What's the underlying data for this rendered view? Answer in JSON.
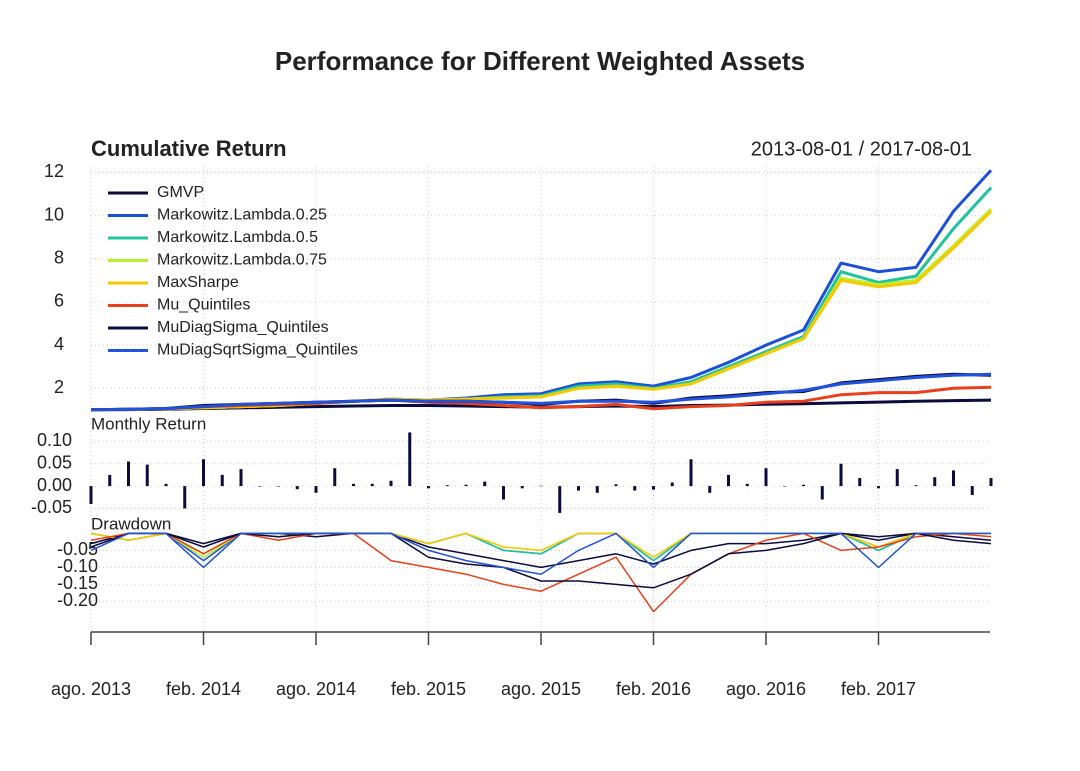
{
  "chart_data": [
    {
      "type": "line",
      "title": "Performance for Different Weighted Assets",
      "subtitle": "Cumulative Return",
      "annotation": "2013-08-01 / 2017-08-01",
      "legend": "top-left",
      "x": [
        "2013-08",
        "2013-10",
        "2013-12",
        "2014-02",
        "2014-04",
        "2014-06",
        "2014-08",
        "2014-10",
        "2014-12",
        "2015-02",
        "2015-04",
        "2015-06",
        "2015-08",
        "2015-10",
        "2015-12",
        "2016-02",
        "2016-04",
        "2016-06",
        "2016-08",
        "2016-10",
        "2016-12",
        "2017-02",
        "2017-04",
        "2017-06",
        "2017-08"
      ],
      "ylim": [
        0.9,
        12.3
      ],
      "yticks": [
        2,
        4,
        6,
        8,
        10,
        12
      ],
      "grid": true,
      "series": [
        {
          "name": "GMVP",
          "color": "#0b0b3d",
          "values": [
            1,
            1.01,
            1.03,
            1.06,
            1.09,
            1.12,
            1.15,
            1.18,
            1.2,
            1.2,
            1.18,
            1.15,
            1.12,
            1.15,
            1.18,
            1.15,
            1.2,
            1.22,
            1.26,
            1.28,
            1.32,
            1.36,
            1.4,
            1.43,
            1.45
          ]
        },
        {
          "name": "Markowitz.Lambda.0.25",
          "color": "#1c4fd8",
          "values": [
            1,
            1.02,
            1.05,
            1.1,
            1.15,
            1.2,
            1.3,
            1.4,
            1.5,
            1.45,
            1.55,
            1.7,
            1.75,
            2.2,
            2.3,
            2.1,
            2.5,
            3.2,
            4.0,
            4.7,
            7.8,
            7.4,
            7.6,
            10.2,
            12.1
          ]
        },
        {
          "name": "Markowitz.Lambda.0.5",
          "color": "#1fc49a",
          "values": [
            1,
            1.02,
            1.05,
            1.1,
            1.15,
            1.2,
            1.3,
            1.4,
            1.5,
            1.45,
            1.5,
            1.6,
            1.65,
            2.1,
            2.2,
            2.0,
            2.3,
            3.0,
            3.7,
            4.4,
            7.4,
            6.9,
            7.2,
            9.4,
            11.3
          ]
        },
        {
          "name": "Markowitz.Lambda.0.75",
          "color": "#bdf02c",
          "values": [
            1,
            1.02,
            1.05,
            1.1,
            1.15,
            1.2,
            1.3,
            1.4,
            1.5,
            1.45,
            1.5,
            1.55,
            1.6,
            2.0,
            2.1,
            1.95,
            2.2,
            2.9,
            3.6,
            4.3,
            7.1,
            6.8,
            7.0,
            8.6,
            10.3
          ]
        },
        {
          "name": "MaxSharpe",
          "color": "#f5c800",
          "values": [
            1,
            1.02,
            1.05,
            1.1,
            1.15,
            1.2,
            1.3,
            1.4,
            1.5,
            1.45,
            1.5,
            1.55,
            1.6,
            2.0,
            2.1,
            1.95,
            2.2,
            2.9,
            3.6,
            4.3,
            7.0,
            6.7,
            6.9,
            8.5,
            10.2
          ]
        },
        {
          "name": "Mu_Quintiles",
          "color": "#e8401c",
          "values": [
            1,
            1.02,
            1.05,
            1.15,
            1.2,
            1.25,
            1.3,
            1.4,
            1.45,
            1.35,
            1.3,
            1.2,
            1.1,
            1.15,
            1.25,
            1.05,
            1.15,
            1.2,
            1.35,
            1.4,
            1.7,
            1.8,
            1.8,
            2.0,
            2.05
          ]
        },
        {
          "name": "MuDiagSigma_Quintiles",
          "color": "#0b0b3d",
          "values": [
            1,
            1.03,
            1.06,
            1.2,
            1.25,
            1.3,
            1.35,
            1.4,
            1.45,
            1.4,
            1.4,
            1.35,
            1.25,
            1.4,
            1.45,
            1.3,
            1.55,
            1.65,
            1.8,
            1.85,
            2.25,
            2.4,
            2.55,
            2.65,
            2.6
          ]
        },
        {
          "name": "MuDiagSqrtSigma_Quintiles",
          "color": "#2152da",
          "values": [
            1,
            1.03,
            1.06,
            1.15,
            1.25,
            1.3,
            1.35,
            1.4,
            1.45,
            1.4,
            1.4,
            1.35,
            1.3,
            1.4,
            1.4,
            1.35,
            1.5,
            1.6,
            1.75,
            1.9,
            2.2,
            2.35,
            2.5,
            2.6,
            2.65
          ]
        }
      ]
    },
    {
      "type": "bar",
      "title": "Monthly Return",
      "color": "#0b0b3d",
      "x": [
        "2013-08",
        "2013-09",
        "2013-10",
        "2013-11",
        "2013-12",
        "2014-01",
        "2014-02",
        "2014-03",
        "2014-04",
        "2014-05",
        "2014-06",
        "2014-07",
        "2014-08",
        "2014-09",
        "2014-10",
        "2014-11",
        "2014-12",
        "2015-01",
        "2015-02",
        "2015-03",
        "2015-04",
        "2015-05",
        "2015-06",
        "2015-07",
        "2015-08",
        "2015-09",
        "2015-10",
        "2015-11",
        "2015-12",
        "2016-01",
        "2016-02",
        "2016-03",
        "2016-04",
        "2016-05",
        "2016-06",
        "2016-07",
        "2016-08",
        "2016-09",
        "2016-10",
        "2016-11",
        "2016-12",
        "2017-01",
        "2017-02",
        "2017-03",
        "2017-04",
        "2017-05",
        "2017-06",
        "2017-07",
        "2017-08"
      ],
      "values": [
        -0.04,
        0.025,
        0.055,
        0.048,
        0.005,
        -0.05,
        0.06,
        0.025,
        0.038,
        0,
        0,
        -0.007,
        -0.015,
        0.04,
        0.005,
        0.005,
        0.012,
        0.12,
        -0.005,
        0.002,
        0.003,
        0.01,
        -0.03,
        -0.005,
        0.001,
        -0.06,
        -0.01,
        -0.015,
        0.004,
        -0.01,
        -0.008,
        0.008,
        0.06,
        -0.015,
        0.025,
        0.005,
        0.04,
        0,
        0.003,
        -0.03,
        0.05,
        0.018,
        -0.005,
        0.038,
        0.002,
        0.02,
        0.035,
        -0.02,
        0.018
      ],
      "ylim": [
        -0.087,
        0.15
      ],
      "yticks": [
        {
          "value": 0.1,
          "label": "0.10"
        },
        {
          "value": 0.05,
          "label": "0.05"
        },
        {
          "value": 0,
          "label": "0.00"
        },
        {
          "value": -0.05,
          "label": "-0.05"
        }
      ],
      "grid": true
    },
    {
      "type": "line",
      "title": "Drawdown",
      "x": [
        "2013-08",
        "2013-10",
        "2013-12",
        "2014-02",
        "2014-04",
        "2014-06",
        "2014-08",
        "2014-10",
        "2014-12",
        "2015-02",
        "2015-04",
        "2015-06",
        "2015-08",
        "2015-10",
        "2015-12",
        "2016-02",
        "2016-04",
        "2016-06",
        "2016-08",
        "2016-10",
        "2016-12",
        "2017-02",
        "2017-04",
        "2017-06",
        "2017-08"
      ],
      "ylim": [
        -0.29,
        0.01
      ],
      "yticks": [
        {
          "value": -0.05,
          "label": "-0.05"
        },
        {
          "value": -0.1,
          "label": "-0.10"
        },
        {
          "value": -0.15,
          "label": "-0.15"
        },
        {
          "value": -0.2,
          "label": "-0.20"
        }
      ],
      "grid": true,
      "xticks": [
        {
          "value": "2013-08",
          "label": "ago. 2013"
        },
        {
          "value": "2014-02",
          "label": "feb. 2014"
        },
        {
          "value": "2014-08",
          "label": "ago. 2014"
        },
        {
          "value": "2015-02",
          "label": "feb. 2015"
        },
        {
          "value": "2015-08",
          "label": "ago. 2015"
        },
        {
          "value": "2016-02",
          "label": "feb. 2016"
        },
        {
          "value": "2016-08",
          "label": "ago. 2016"
        },
        {
          "value": "2017-02",
          "label": "feb. 2017"
        }
      ],
      "series": [
        {
          "name": "GMVP",
          "color": "#0b0b3d",
          "values": [
            -0.03,
            0,
            0,
            -0.03,
            0,
            0,
            -0.01,
            0,
            0,
            -0.04,
            -0.06,
            -0.08,
            -0.1,
            -0.08,
            -0.06,
            -0.09,
            -0.05,
            -0.03,
            -0.03,
            -0.02,
            0,
            -0.02,
            0,
            -0.01,
            -0.02
          ]
        },
        {
          "name": "Markowitz.Lambda.0.25",
          "color": "#1c4fd8",
          "values": [
            0,
            -0.02,
            0,
            -0.08,
            0,
            0,
            0,
            0,
            0,
            -0.03,
            0,
            -0.05,
            -0.06,
            0,
            0,
            -0.08,
            0,
            0,
            0,
            0,
            0,
            -0.05,
            0,
            0,
            0
          ]
        },
        {
          "name": "Markowitz.Lambda.0.5",
          "color": "#1fc49a",
          "values": [
            0,
            -0.02,
            0,
            -0.07,
            0,
            0,
            0,
            0,
            0,
            -0.03,
            0,
            -0.05,
            -0.06,
            0,
            0,
            -0.08,
            0,
            0,
            0,
            0,
            0,
            -0.05,
            0,
            0,
            0
          ]
        },
        {
          "name": "Markowitz.Lambda.0.75",
          "color": "#bdf02c",
          "values": [
            0,
            -0.02,
            0,
            -0.07,
            0,
            -0.01,
            0,
            0,
            0,
            -0.03,
            0,
            -0.04,
            -0.05,
            0,
            0,
            -0.07,
            0,
            0,
            0,
            0,
            0,
            -0.04,
            0,
            0,
            0
          ]
        },
        {
          "name": "MaxSharpe",
          "color": "#f5c800",
          "values": [
            0,
            -0.02,
            0,
            -0.06,
            0,
            -0.01,
            0,
            0,
            0,
            -0.03,
            0,
            -0.04,
            -0.05,
            0,
            0,
            -0.07,
            0,
            0,
            0,
            0,
            0,
            -0.04,
            0,
            0,
            0
          ]
        },
        {
          "name": "Mu_Quintiles",
          "color": "#e8401c",
          "values": [
            -0.02,
            0,
            0,
            -0.06,
            0,
            -0.02,
            0,
            0,
            -0.08,
            -0.1,
            -0.12,
            -0.15,
            -0.17,
            -0.12,
            -0.07,
            -0.23,
            -0.12,
            -0.06,
            -0.02,
            0,
            -0.05,
            -0.04,
            -0.01,
            0,
            -0.01
          ]
        },
        {
          "name": "MuDiagSigma_Quintiles",
          "color": "#0b0b3d",
          "values": [
            -0.04,
            0,
            0,
            -0.04,
            0,
            -0.01,
            0,
            0,
            0,
            -0.07,
            -0.09,
            -0.1,
            -0.14,
            -0.14,
            -0.15,
            -0.16,
            -0.12,
            -0.06,
            -0.05,
            -0.03,
            0,
            -0.01,
            0,
            -0.02,
            -0.03
          ]
        },
        {
          "name": "MuDiagSqrtSigma_Quintiles",
          "color": "#2152da",
          "values": [
            -0.05,
            0,
            0,
            -0.1,
            0,
            0,
            0,
            0,
            0,
            -0.05,
            -0.08,
            -0.1,
            -0.12,
            -0.05,
            0,
            -0.1,
            0,
            0,
            0,
            0,
            0,
            -0.1,
            0,
            0,
            0
          ]
        }
      ]
    }
  ]
}
